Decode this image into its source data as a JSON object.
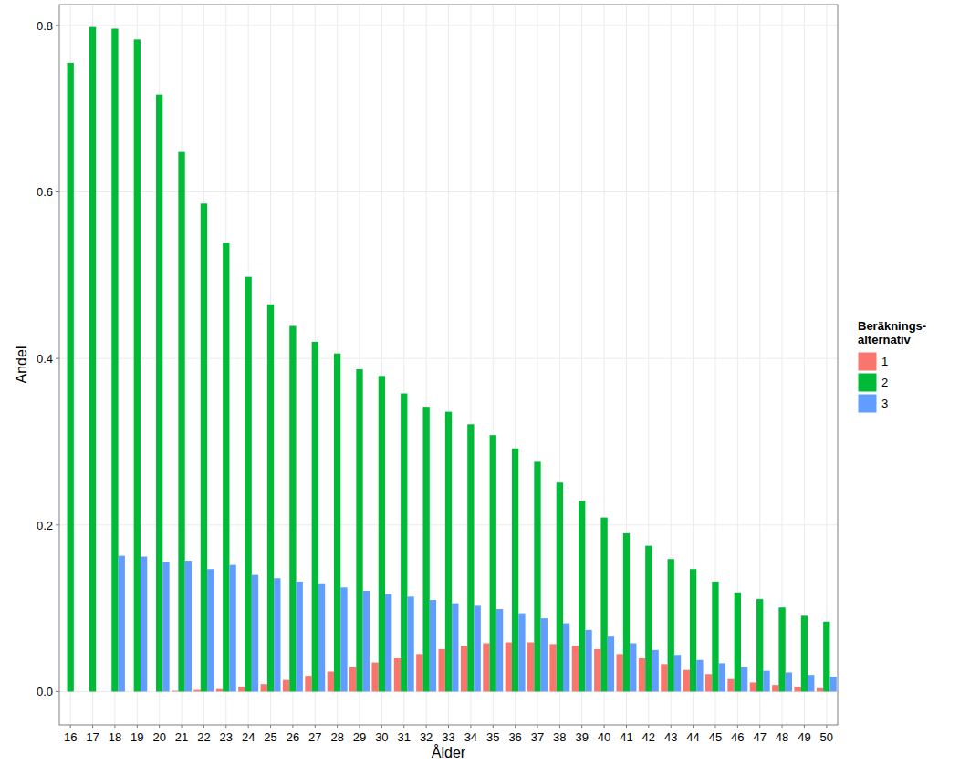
{
  "chart_data": {
    "type": "bar",
    "x_label": "Ålder",
    "y_label": "Andel",
    "legend_title": "Beräknings-\nalternativ",
    "legend": "right",
    "grid": true,
    "categories": [
      "16",
      "17",
      "18",
      "19",
      "20",
      "21",
      "22",
      "23",
      "24",
      "25",
      "26",
      "27",
      "28",
      "29",
      "30",
      "31",
      "32",
      "33",
      "34",
      "35",
      "36",
      "37",
      "38",
      "39",
      "40",
      "41",
      "42",
      "43",
      "44",
      "45",
      "46",
      "47",
      "48",
      "49",
      "50"
    ],
    "series": [
      {
        "name": "1",
        "color": "#F8766D",
        "values": [
          0,
          0,
          0,
          0,
          0,
          0.001,
          0.002,
          0.003,
          0.006,
          0.009,
          0.014,
          0.019,
          0.024,
          0.029,
          0.035,
          0.04,
          0.045,
          0.051,
          0.055,
          0.058,
          0.059,
          0.059,
          0.057,
          0.055,
          0.051,
          0.045,
          0.04,
          0.033,
          0.026,
          0.021,
          0.015,
          0.011,
          0.008,
          0.006,
          0.004
        ]
      },
      {
        "name": "2",
        "color": "#00BA38",
        "values": [
          0.755,
          0.798,
          0.796,
          0.783,
          0.717,
          0.648,
          0.586,
          0.539,
          0.498,
          0.465,
          0.439,
          0.42,
          0.406,
          0.387,
          0.379,
          0.358,
          0.342,
          0.336,
          0.321,
          0.308,
          0.292,
          0.276,
          0.251,
          0.229,
          0.209,
          0.19,
          0.175,
          0.159,
          0.147,
          0.132,
          0.119,
          0.111,
          0.101,
          0.091,
          0.084
        ]
      },
      {
        "name": "3",
        "color": "#619CFF",
        "values": [
          0,
          0,
          0.163,
          0.162,
          0.156,
          0.157,
          0.147,
          0.152,
          0.14,
          0.136,
          0.132,
          0.13,
          0.125,
          0.121,
          0.117,
          0.114,
          0.11,
          0.106,
          0.103,
          0.099,
          0.094,
          0.088,
          0.082,
          0.074,
          0.066,
          0.058,
          0.05,
          0.044,
          0.038,
          0.034,
          0.029,
          0.025,
          0.023,
          0.02,
          0.018
        ]
      }
    ],
    "ylim": [
      -0.04,
      0.825
    ],
    "yticks": [
      {
        "value": 0,
        "label": "0.0"
      },
      0.2,
      0.4,
      0.6,
      0.8
    ]
  }
}
